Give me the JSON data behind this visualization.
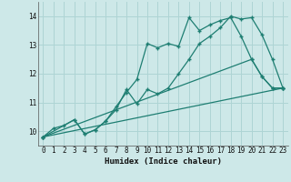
{
  "xlabel": "Humidex (Indice chaleur)",
  "bg_color": "#cde8e8",
  "grid_color": "#aed4d4",
  "line_color": "#1e7e72",
  "xlim": [
    -0.5,
    23.5
  ],
  "ylim": [
    9.5,
    14.5
  ],
  "xticks": [
    0,
    1,
    2,
    3,
    4,
    5,
    6,
    7,
    8,
    9,
    10,
    11,
    12,
    13,
    14,
    15,
    16,
    17,
    18,
    19,
    20,
    21,
    22,
    23
  ],
  "yticks": [
    10,
    11,
    12,
    13,
    14
  ],
  "lines": [
    {
      "x": [
        0,
        1,
        2,
        3,
        4,
        5,
        6,
        7,
        8,
        9,
        10,
        11,
        12,
        13,
        14,
        15,
        16,
        17,
        18,
        19,
        20,
        21,
        22,
        23
      ],
      "y": [
        9.8,
        10.1,
        10.2,
        10.4,
        9.9,
        10.05,
        10.35,
        10.85,
        11.35,
        11.8,
        13.05,
        12.9,
        13.05,
        12.95,
        13.95,
        13.5,
        13.7,
        13.85,
        13.95,
        13.3,
        12.5,
        11.9,
        11.5,
        11.5
      ]
    },
    {
      "x": [
        0,
        3,
        4,
        5,
        6,
        7,
        8,
        9,
        10,
        11,
        12,
        13,
        14,
        15,
        16,
        17,
        18,
        19,
        20,
        21,
        22,
        23
      ],
      "y": [
        9.8,
        10.4,
        9.9,
        10.05,
        10.35,
        10.75,
        11.45,
        10.95,
        11.45,
        11.3,
        11.5,
        12.0,
        12.5,
        13.05,
        13.3,
        13.6,
        14.0,
        13.9,
        13.95,
        13.35,
        12.5,
        11.5
      ]
    },
    {
      "x": [
        0,
        23
      ],
      "y": [
        9.8,
        11.5
      ]
    },
    {
      "x": [
        0,
        20,
        21,
        22,
        23
      ],
      "y": [
        9.8,
        12.5,
        11.9,
        11.5,
        11.5
      ]
    }
  ]
}
